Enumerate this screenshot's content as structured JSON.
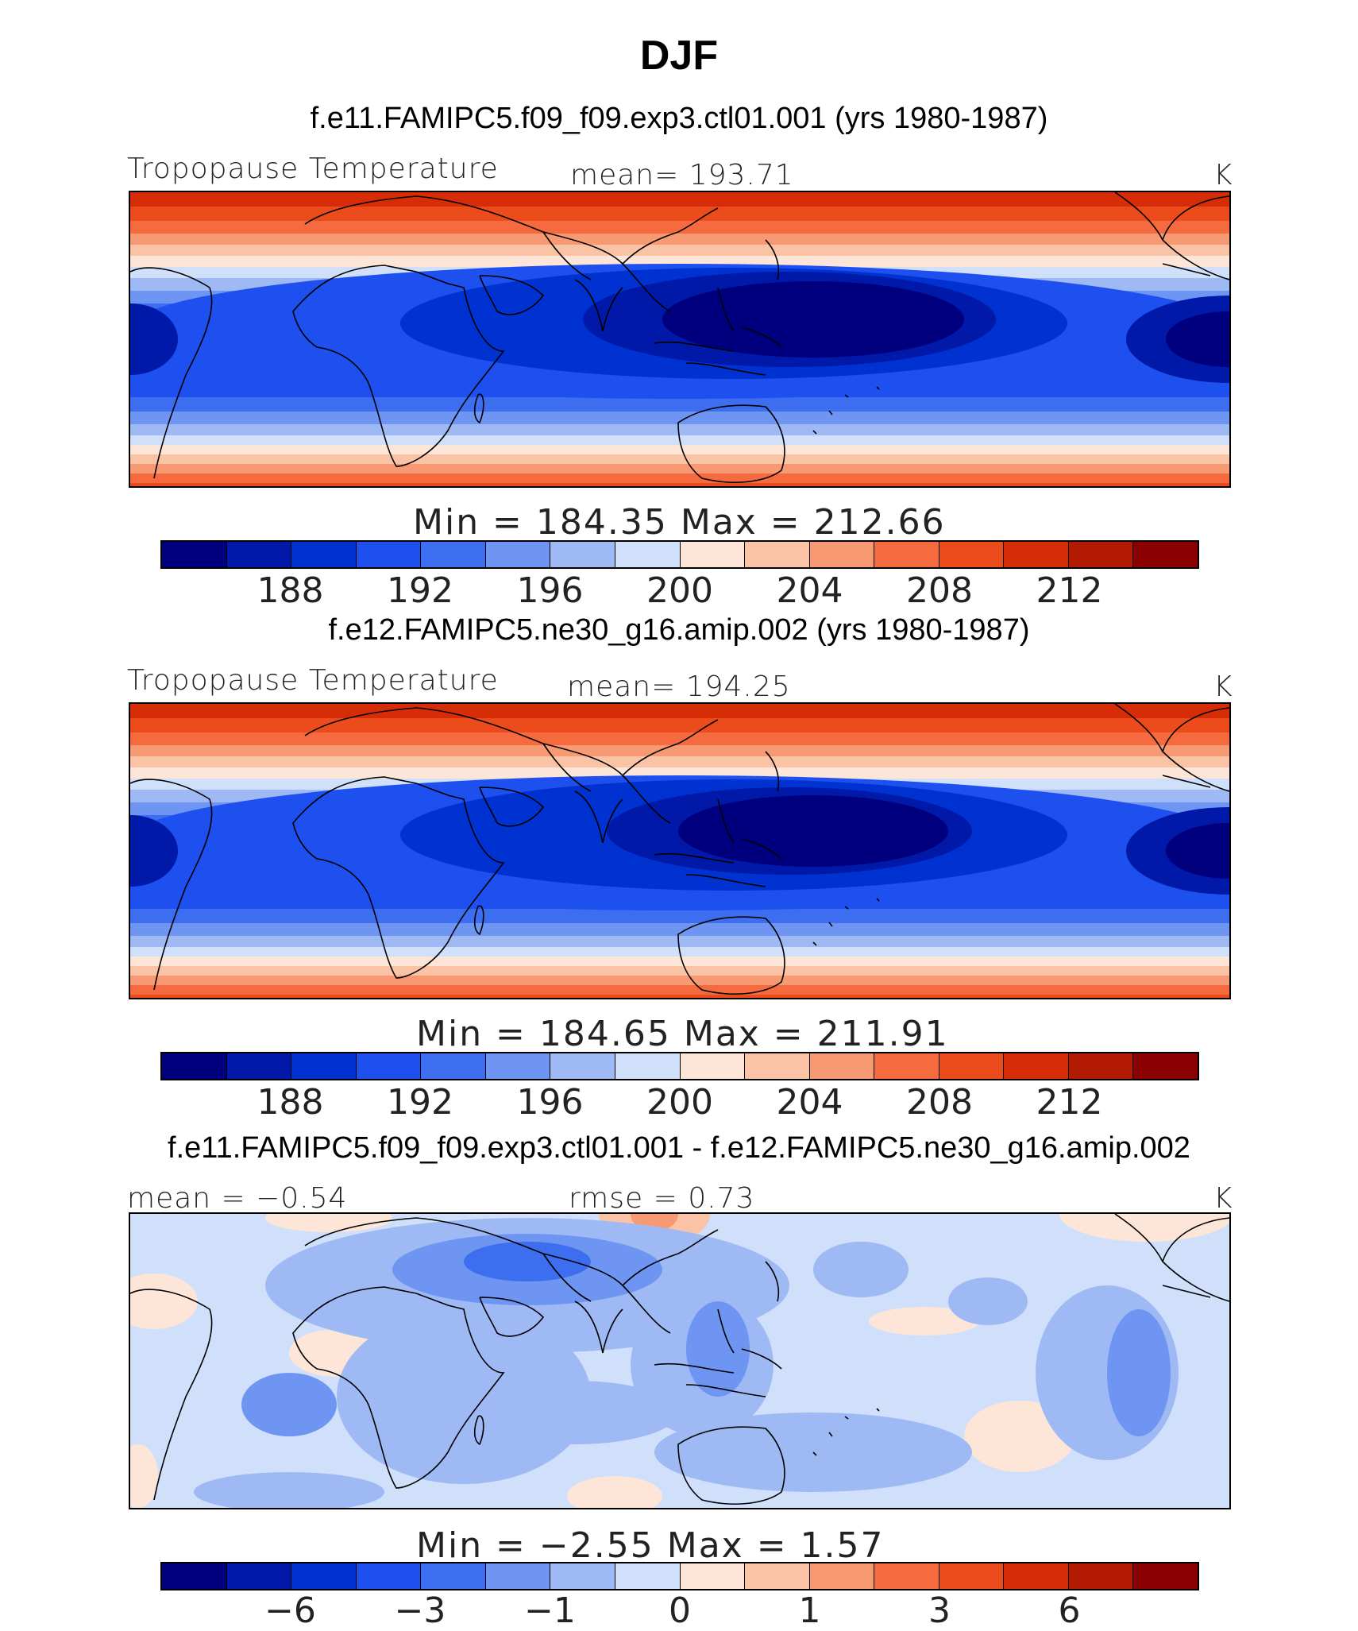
{
  "title": "DJF",
  "colors": [
    "#00007f",
    "#0019a8",
    "#0032d1",
    "#1e50f0",
    "#3c6eef",
    "#6e95f2",
    "#9fb9f5",
    "#d0e0fa",
    "#fde6d8",
    "#fbc3a6",
    "#f79a74",
    "#f56a3f",
    "#ec4b1c",
    "#d62c07",
    "#b21b02",
    "#8b0000"
  ],
  "coast_color": "#000000",
  "panels": [
    {
      "title": "f.e11.FAMIPC5.f09_f09.exp3.ctl01.001 (yrs 1980-1987)",
      "left_label": "Tropopause Temperature",
      "center_label": "mean=  193.71",
      "right_label": "K",
      "minmax": "Min  =  184.35  Max  =  212.66",
      "colorbar_ticks": [
        "188",
        "192",
        "196",
        "200",
        "204",
        "208",
        "212"
      ]
    },
    {
      "title": "f.e12.FAMIPC5.ne30_g16.amip.002 (yrs 1980-1987)",
      "left_label": "Tropopause Temperature",
      "center_label": "mean=  194.25",
      "right_label": "K",
      "minmax": "Min  =  184.65  Max  =  211.91",
      "colorbar_ticks": [
        "188",
        "192",
        "196",
        "200",
        "204",
        "208",
        "212"
      ]
    },
    {
      "title": "f.e11.FAMIPC5.f09_f09.exp3.ctl01.001 - f.e12.FAMIPC5.ne30_g16.amip.002",
      "left_label": "mean =   −0.54",
      "center_label": "rmse =     0.73",
      "right_label": "K",
      "minmax": "Min  =    −2.55  Max  =      1.57",
      "colorbar_ticks": [
        "−6",
        "−3",
        "−1",
        "0",
        "1",
        "3",
        "6"
      ]
    }
  ]
}
